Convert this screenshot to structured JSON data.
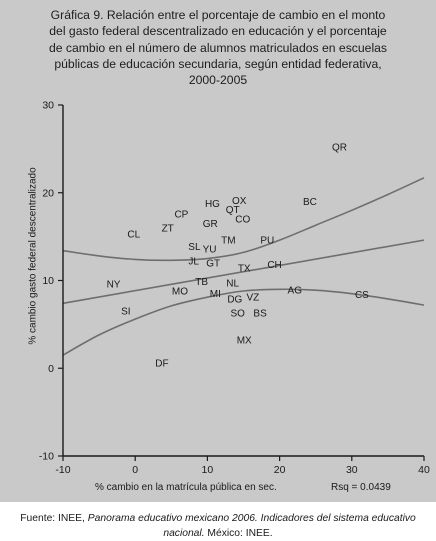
{
  "title_lines": [
    "Gráfica 9. Relación entre el porcentaje de cambio en el monto",
    "del gasto federal descentralizado en educación y el porcentaje",
    "de cambio en el número de alumnos matriculados en escuelas",
    "públicas de educación secundaria, según entidad federativa,",
    "2000-2005"
  ],
  "source": {
    "prefix": "Fuente: INEE, ",
    "italic": "Panorama educativo mexicano 2006. Indicadores del sistema educativo nacional.",
    "suffix": " México: INEE."
  },
  "colors": {
    "panel_background": "#c9c9c9",
    "axis": "#1a1a1a",
    "fit_line": "#6e6e6e",
    "text": "#1a1a1a"
  },
  "chart_data": {
    "type": "scatter",
    "xlabel": "% cambio en la matrícula pública en sec.",
    "ylabel": "% cambio gasto federal descentralizado",
    "annotation": "Rsq = 0.0439",
    "xlim": [
      -10,
      40
    ],
    "ylim": [
      -10,
      30
    ],
    "xticks": [
      -10,
      0,
      10,
      20,
      30,
      40
    ],
    "yticks": [
      -10,
      0,
      10,
      20,
      30
    ],
    "grid": false,
    "points": [
      {
        "label": "QR",
        "x": 28.3,
        "y": 25.2
      },
      {
        "label": "BC",
        "x": 24.2,
        "y": 19.0
      },
      {
        "label": "OX",
        "x": 14.4,
        "y": 19.1
      },
      {
        "label": "HG",
        "x": 10.7,
        "y": 18.8
      },
      {
        "label": "QT",
        "x": 13.5,
        "y": 18.1
      },
      {
        "label": "CP",
        "x": 6.4,
        "y": 17.6
      },
      {
        "label": "CO",
        "x": 14.9,
        "y": 17.0
      },
      {
        "label": "GR",
        "x": 10.4,
        "y": 16.5
      },
      {
        "label": "ZT",
        "x": 4.5,
        "y": 16.0
      },
      {
        "label": "CL",
        "x": -0.2,
        "y": 15.3
      },
      {
        "label": "TM",
        "x": 12.9,
        "y": 14.6
      },
      {
        "label": "PU",
        "x": 18.3,
        "y": 14.6
      },
      {
        "label": "SL",
        "x": 8.2,
        "y": 13.9
      },
      {
        "label": "YU",
        "x": 10.3,
        "y": 13.6
      },
      {
        "label": "JL",
        "x": 8.1,
        "y": 12.2
      },
      {
        "label": "GT",
        "x": 10.8,
        "y": 12.0
      },
      {
        "label": "TX",
        "x": 15.1,
        "y": 11.4
      },
      {
        "label": "CH",
        "x": 19.3,
        "y": 11.8
      },
      {
        "label": "NY",
        "x": -3.0,
        "y": 9.6
      },
      {
        "label": "TB",
        "x": 9.2,
        "y": 9.9
      },
      {
        "label": "NL",
        "x": 13.5,
        "y": 9.7
      },
      {
        "label": "MO",
        "x": 6.2,
        "y": 8.8
      },
      {
        "label": "MI",
        "x": 11.1,
        "y": 8.5
      },
      {
        "label": "AG",
        "x": 22.1,
        "y": 8.9
      },
      {
        "label": "CS",
        "x": 31.4,
        "y": 8.4
      },
      {
        "label": "DG",
        "x": 13.8,
        "y": 7.9
      },
      {
        "label": "VZ",
        "x": 16.3,
        "y": 8.1
      },
      {
        "label": "SI",
        "x": -1.3,
        "y": 6.5
      },
      {
        "label": "SO",
        "x": 14.2,
        "y": 6.3
      },
      {
        "label": "BS",
        "x": 17.3,
        "y": 6.3
      },
      {
        "label": "MX",
        "x": 15.1,
        "y": 3.2
      },
      {
        "label": "DF",
        "x": 3.7,
        "y": 0.6
      }
    ],
    "fit_line": {
      "x": [
        -10,
        40
      ],
      "y": [
        7.4,
        14.6
      ]
    },
    "ci_upper": {
      "x": [
        -10,
        -5,
        0,
        5,
        10,
        15,
        20,
        25,
        30,
        35,
        40
      ],
      "y": [
        13.4,
        12.8,
        12.4,
        12.3,
        12.5,
        13.2,
        14.6,
        16.3,
        18.0,
        19.8,
        21.7
      ]
    },
    "ci_lower": {
      "x": [
        -10,
        -5,
        0,
        5,
        10,
        15,
        20,
        25,
        30,
        35,
        40
      ],
      "y": [
        1.5,
        3.8,
        5.6,
        7.1,
        8.1,
        8.8,
        9.0,
        8.9,
        8.5,
        7.9,
        7.2
      ]
    }
  }
}
